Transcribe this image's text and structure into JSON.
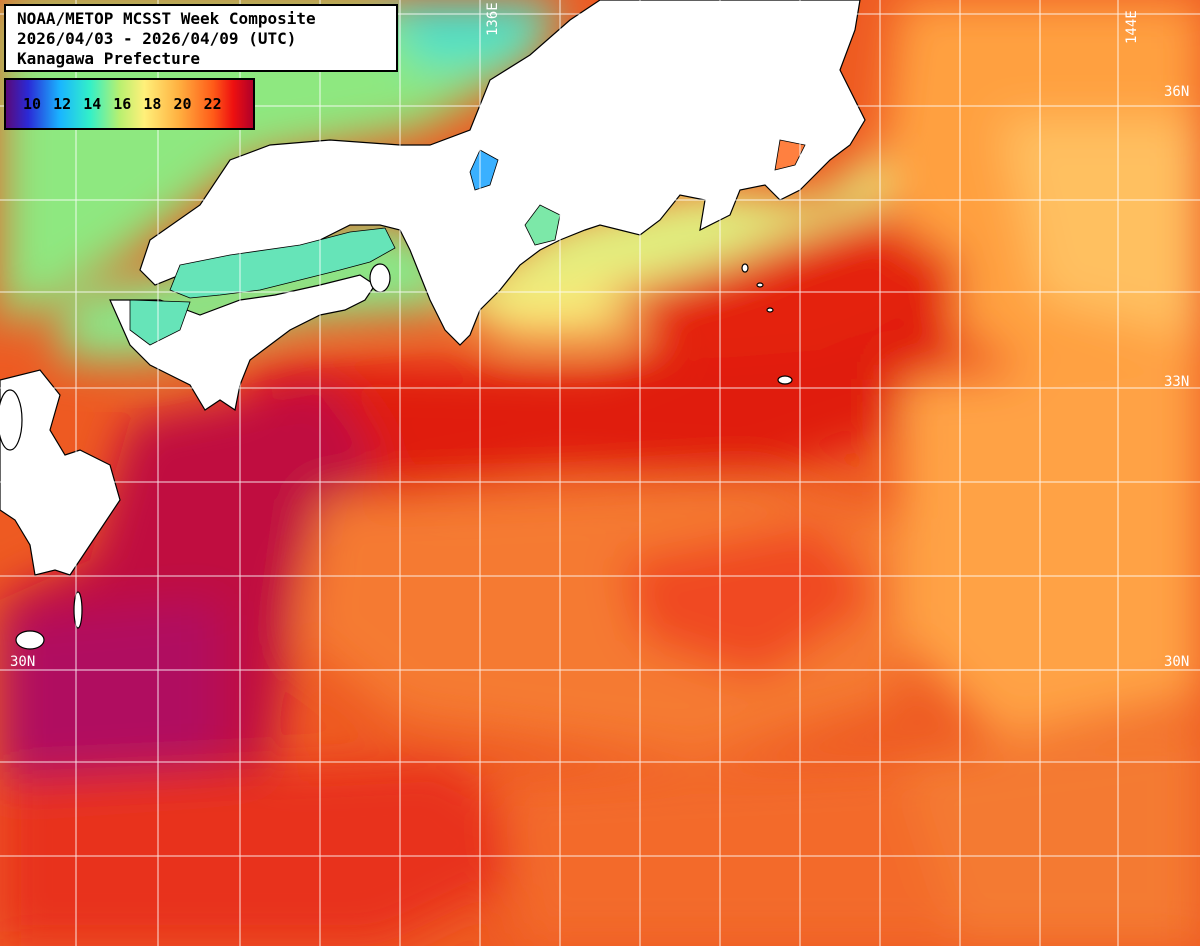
{
  "title": {
    "line1": "NOAA/METOP MCSST Week Composite",
    "line2": "2026/04/03 - 2026/04/09 (UTC)",
    "line3": "Kanagawa Prefecture"
  },
  "legend": {
    "labels": [
      "10",
      "12",
      "14",
      "16",
      "18",
      "20",
      "22"
    ],
    "colors": [
      "#5a0a7a",
      "#2a2ad6",
      "#1ab6ff",
      "#33f0c8",
      "#b8f070",
      "#fff07a",
      "#ffb040",
      "#ff5a18",
      "#ee1010",
      "#b0002a"
    ]
  },
  "grid_labels": {
    "lon_136": "136E",
    "lon_144": "144E",
    "lat_36": "36N",
    "lat_33": "33N",
    "lat_30_left": "30N",
    "lat_30_right": "30N"
  },
  "colors": {
    "land": "#ffffff",
    "coastline": "#000000",
    "grid": "#ffffff",
    "sst_warm": "#e83010",
    "sst_hot": "#c8102c",
    "sst_mild": "#ff9a3c",
    "sst_cool": "#9cf07a"
  }
}
